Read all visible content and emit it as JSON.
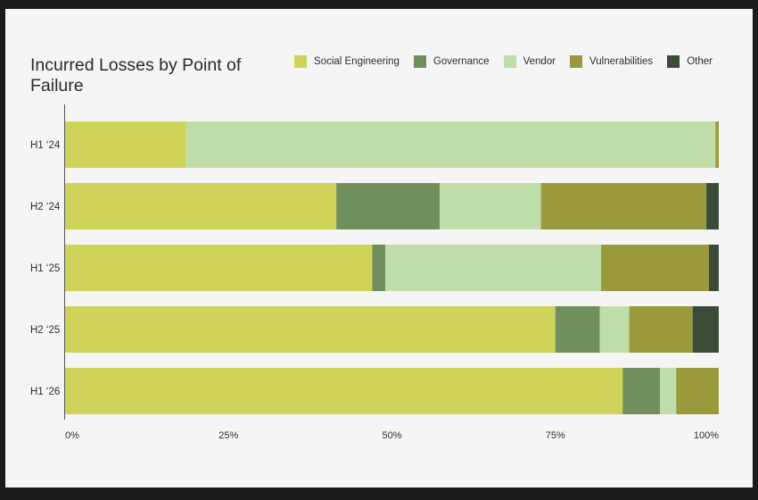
{
  "chart_data": {
    "type": "bar",
    "orientation": "horizontal",
    "stacked": true,
    "title": "Incurred Losses by Point of Failure",
    "xlabel": "",
    "ylabel": "",
    "xlim": [
      0,
      100
    ],
    "x_ticks": [
      "0%",
      "25%",
      "50%",
      "75%",
      "100%"
    ],
    "categories": [
      "H1 ‘24",
      "H2 ‘24",
      "H1 ‘25",
      "H2 ‘25",
      "H1 ‘26"
    ],
    "legend_position": "top-right",
    "grid": false,
    "series": [
      {
        "name": "Social Engineering",
        "color": "#cfd35a",
        "values": [
          18.5,
          41.5,
          47,
          75,
          85.3
        ]
      },
      {
        "name": "Governance",
        "color": "#718f5c",
        "values": [
          0,
          15.8,
          2,
          6.8,
          5.7
        ]
      },
      {
        "name": "Vendor",
        "color": "#bedda8",
        "values": [
          81,
          15.5,
          33,
          4.5,
          2.5
        ]
      },
      {
        "name": "Vulnerabilities",
        "color": "#9a9a3c",
        "values": [
          0.5,
          25.3,
          16.5,
          9.7,
          6.5
        ]
      },
      {
        "name": "Other",
        "color": "#3c4a38",
        "values": [
          0,
          1.9,
          1.5,
          4,
          0
        ]
      }
    ]
  }
}
